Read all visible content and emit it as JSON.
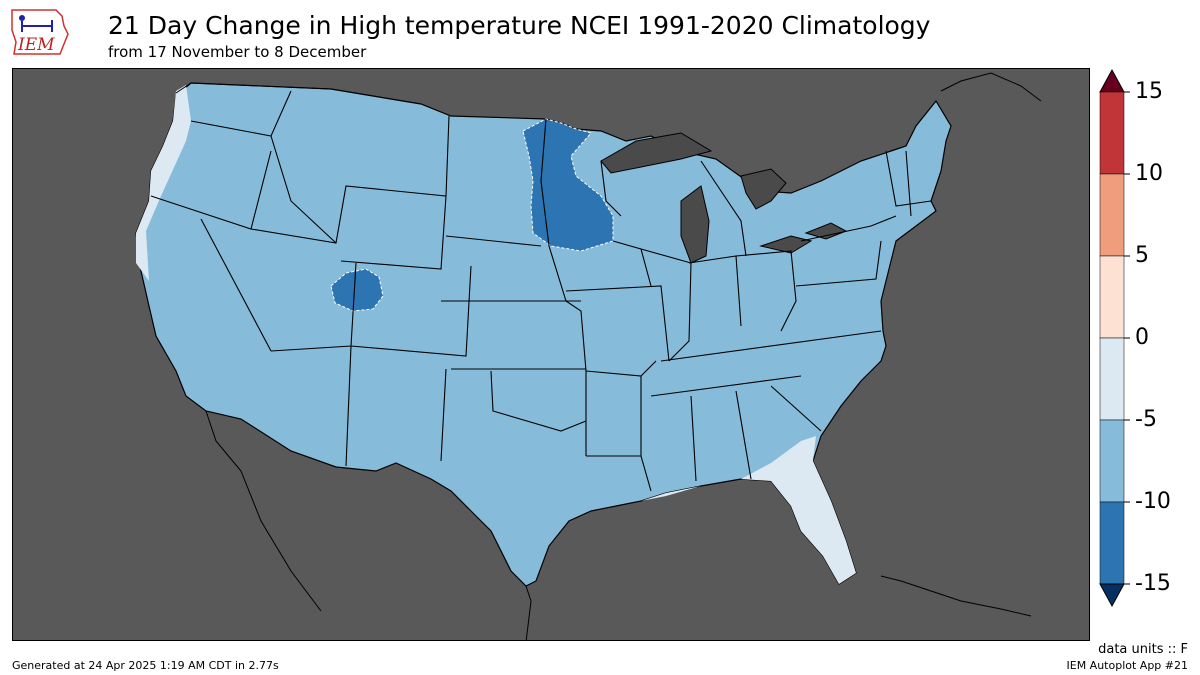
{
  "logo": {
    "text": "IEM"
  },
  "header": {
    "title": "21 Day Change in High temperature NCEI 1991-2020 Climatology",
    "subtitle": "from 17 November to 8 December"
  },
  "legend": {
    "ticks": [
      "15",
      "10",
      "5",
      "0",
      "-5",
      "-10",
      "-15"
    ],
    "bins": [
      {
        "range": "above 15",
        "color": "#67001f"
      },
      {
        "range": "10 to 15",
        "color": "#c13539"
      },
      {
        "range": "5 to 10",
        "color": "#f09d7d"
      },
      {
        "range": "0 to 5",
        "color": "#fde2d3"
      },
      {
        "range": "-5 to 0",
        "color": "#dce9f2"
      },
      {
        "range": "-10 to -5",
        "color": "#87bbda"
      },
      {
        "range": "-15 to -10",
        "color": "#2c75b2"
      },
      {
        "range": "below -15",
        "color": "#053061"
      }
    ]
  },
  "colors": {
    "background": "#595959",
    "lake": "#4a4a4a",
    "state_border": "#000000"
  },
  "footer": {
    "units": "data units :: F",
    "generated": "Generated at 24 Apr 2025 1:19 AM CDT in 2.77s",
    "app": "IEM Autoplot App #21"
  }
}
